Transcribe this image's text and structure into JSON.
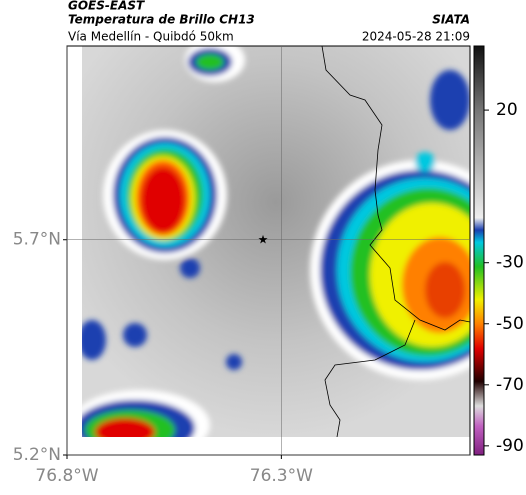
{
  "header": {
    "source": "GOES-EAST",
    "title": "Temperatura de Brillo CH13",
    "brand": "SIATA",
    "route": "Vía Medellín - Quibdó 50km",
    "timestamp": "2024-05-28 21:09"
  },
  "map": {
    "ylim": [
      5.2,
      6.15
    ],
    "xlim": [
      -76.8,
      -75.86
    ],
    "yticks": [
      {
        "value": 5.7,
        "label": "5.7°N"
      },
      {
        "value": 5.2,
        "label": "5.2°N"
      }
    ],
    "xticks": [
      {
        "value": -76.8,
        "label": "76.8°W"
      },
      {
        "value": -76.3,
        "label": "76.3°W"
      }
    ]
  },
  "colorbar": {
    "range": [
      -93,
      41
    ],
    "ticks": [
      20,
      -30,
      -50,
      -70,
      -90
    ]
  }
}
